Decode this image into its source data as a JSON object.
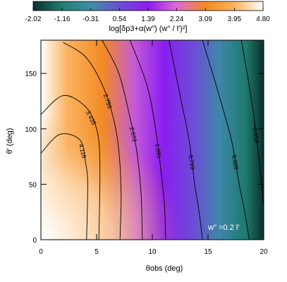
{
  "chart_data": {
    "type": "heatmap",
    "title": "",
    "xlabel": "θobs (deg)",
    "ylabel": "θ′ (deg)",
    "xlim": [
      0,
      20
    ],
    "ylim": [
      0,
      180
    ],
    "x_ticks": [
      "0",
      "5",
      "10",
      "15",
      "20"
    ],
    "y_ticks": [
      "0",
      "50",
      "100",
      "150"
    ],
    "colorbar": {
      "label": "log[δp3+α(w′′) (w′′ / l′)²]",
      "ticks": [
        "-2.02",
        "-1.16",
        "-0.31",
        "0.54",
        "1.39",
        "2.24",
        "3.09",
        "3.95",
        "4.80"
      ],
      "range": [
        -2.02,
        4.8
      ],
      "colors": [
        "#0a2f2f",
        "#1f7e70",
        "#3f8fa6",
        "#6a4fd0",
        "#8e1cf0",
        "#e06ad6",
        "#f58a20",
        "#fbb45c",
        "#ffffff"
      ]
    },
    "contour_levels": [
      {
        "value": "4.116",
        "x": [
          0.0,
          1.7,
          3.5,
          4.0,
          4.2,
          4.1
        ],
        "y": [
          78,
          95,
          90,
          70,
          50,
          0
        ]
      },
      {
        "value": "3.435",
        "x": [
          0.0,
          2.0,
          4.0,
          5.0,
          5.3,
          5.2
        ],
        "y": [
          113,
          130,
          120,
          100,
          70,
          0
        ]
      },
      {
        "value": "2.753",
        "x": [
          2.0,
          4.0,
          5.5,
          6.5,
          7.0,
          7.2,
          7.1
        ],
        "y": [
          178,
          165,
          140,
          110,
          80,
          40,
          0
        ]
      },
      {
        "value": "2.072",
        "x": [
          5.5,
          7.0,
          8.0,
          8.6,
          9.0,
          9.1
        ],
        "y": [
          180,
          150,
          110,
          80,
          40,
          0
        ]
      },
      {
        "value": "1.391",
        "x": [
          8.0,
          9.5,
          10.3,
          10.8,
          11.1,
          11.2
        ],
        "y": [
          180,
          140,
          100,
          60,
          30,
          0
        ]
      },
      {
        "value": "0.710",
        "x": [
          11.5,
          12.5,
          13.3,
          13.8,
          14.2,
          14.5
        ],
        "y": [
          180,
          130,
          90,
          50,
          25,
          0
        ]
      },
      {
        "value": "0.028",
        "x": [
          14.5,
          16.0,
          17.1,
          17.8,
          18.3,
          18.7
        ],
        "y": [
          180,
          130,
          90,
          50,
          25,
          0
        ]
      },
      {
        "value": "-0.653",
        "x": [
          18.0,
          19.0,
          19.6,
          20.0
        ],
        "y": [
          180,
          120,
          70,
          30
        ]
      }
    ],
    "annotation": "w′′ =0.2 l′"
  }
}
